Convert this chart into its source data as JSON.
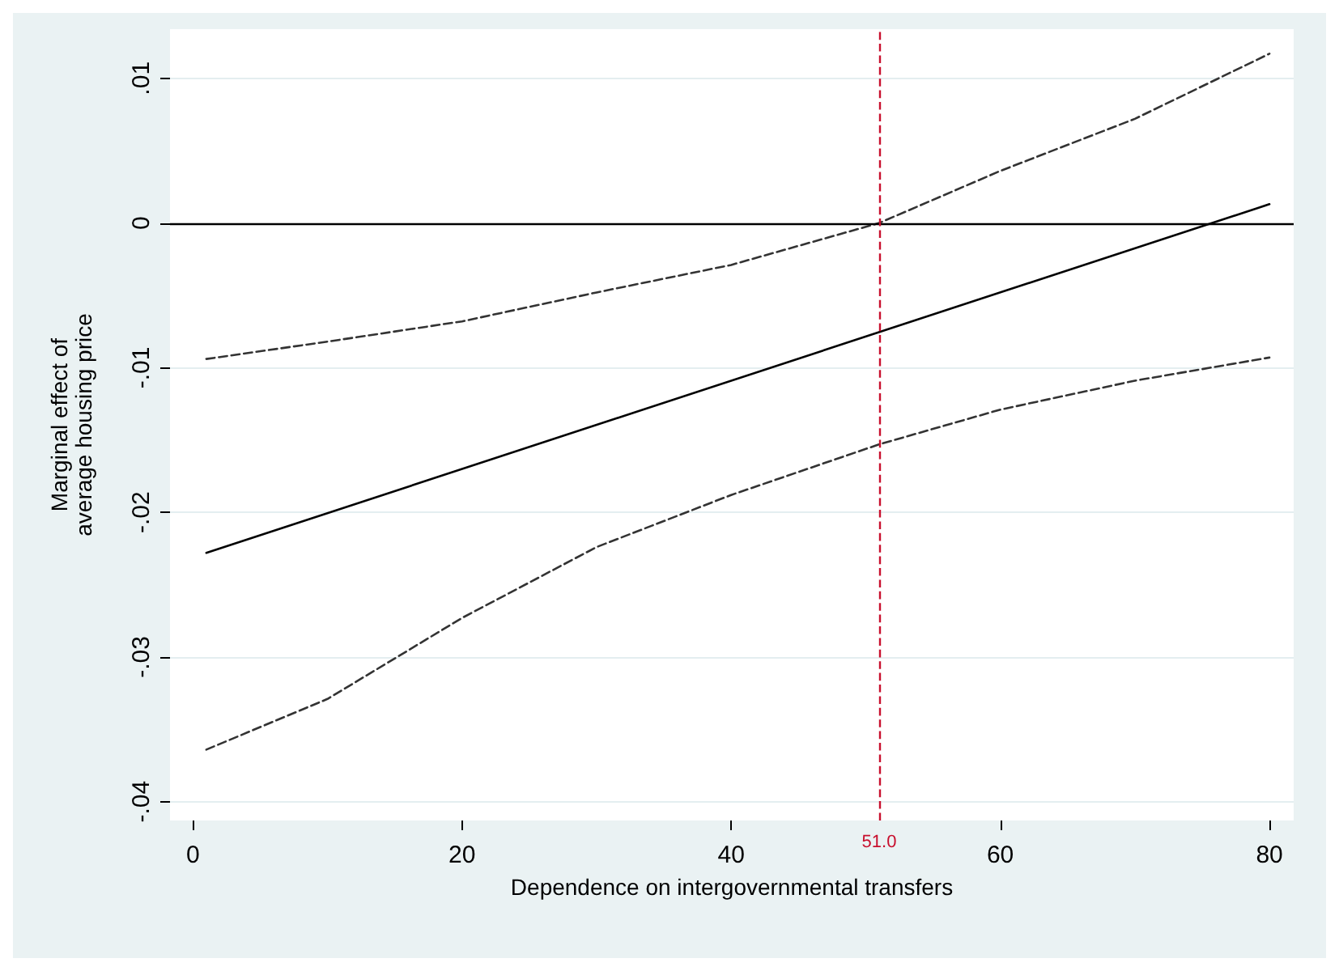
{
  "chart_data": {
    "type": "line",
    "xlabel": "Dependence on intergovernmental transfers",
    "ylabel": "Marginal effect of\naverage housing price",
    "x": [
      1,
      10,
      20,
      30,
      40,
      51,
      60,
      70,
      80
    ],
    "series": [
      {
        "color": "#000000",
        "line_style": "solid",
        "x": [
          1,
          80
        ],
        "values": [
          -0.0228,
          0.0013
        ]
      },
      {
        "color": "#333333",
        "line_style": "dashed",
        "values": [
          -0.0094,
          -0.0082,
          -0.0068,
          -0.0048,
          -0.0029,
          0.0,
          0.0036,
          0.0072,
          0.0117
        ]
      },
      {
        "color": "#333333",
        "line_style": "dashed",
        "values": [
          -0.0364,
          -0.0329,
          -0.0273,
          -0.0224,
          -0.0188,
          -0.0153,
          -0.0129,
          -0.0109,
          -0.0093
        ]
      }
    ],
    "xlim": [
      -1.7,
      81.8
    ],
    "xticks": [
      0,
      20,
      40,
      60,
      80
    ],
    "ylim": [
      -0.0413,
      0.0134
    ],
    "yticks": [
      {
        "value": -0.04,
        "label": "-.04"
      },
      {
        "value": -0.03,
        "label": "-.03"
      },
      {
        "value": -0.02,
        "label": "-.02"
      },
      {
        "value": -0.01,
        "label": "-.01"
      },
      {
        "value": 0,
        "label": "0"
      },
      {
        "value": 0.01,
        "label": ".01"
      }
    ],
    "grid": "y",
    "marker": "none",
    "ref_lines": [
      {
        "axis": "y",
        "value": 0,
        "color": "#000000",
        "line_style": "solid"
      },
      {
        "axis": "x",
        "value": 51,
        "label": "51.0",
        "color": "#c8102e",
        "line_style": "dashed"
      }
    ]
  }
}
